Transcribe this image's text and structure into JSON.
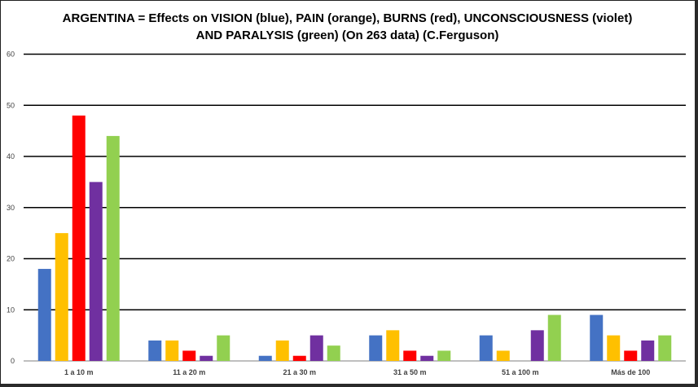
{
  "chart_data": {
    "type": "bar",
    "title_lines": [
      "ARGENTINA = Effects on VISION (blue), PAIN (orange), BURNS (red), UNCONSCIOUSNESS (violet)",
      "AND PARALYSIS (green) (On 263 data) (C.Ferguson)"
    ],
    "xlabel": "",
    "ylabel": "",
    "ylim": [
      0,
      60
    ],
    "yticks": [
      0,
      10,
      20,
      30,
      40,
      50,
      60
    ],
    "grid": true,
    "legend": "none",
    "categories": [
      "1 a 10 m",
      "11 a 20 m",
      "21 a 30 m",
      "31 a 50 m",
      "51 a 100 m",
      "Más de 100"
    ],
    "series": [
      {
        "values": [
          18,
          4,
          1,
          5,
          5,
          9
        ],
        "color": "#4472C4"
      },
      {
        "values": [
          25,
          4,
          4,
          6,
          2,
          5
        ],
        "color": "#FFC000"
      },
      {
        "values": [
          48,
          2,
          1,
          2,
          0,
          2
        ],
        "color": "#FF0000"
      },
      {
        "values": [
          35,
          1,
          5,
          1,
          6,
          4
        ],
        "color": "#7030A0"
      },
      {
        "values": [
          44,
          5,
          3,
          2,
          9,
          5
        ],
        "color": "#92D050"
      }
    ]
  }
}
